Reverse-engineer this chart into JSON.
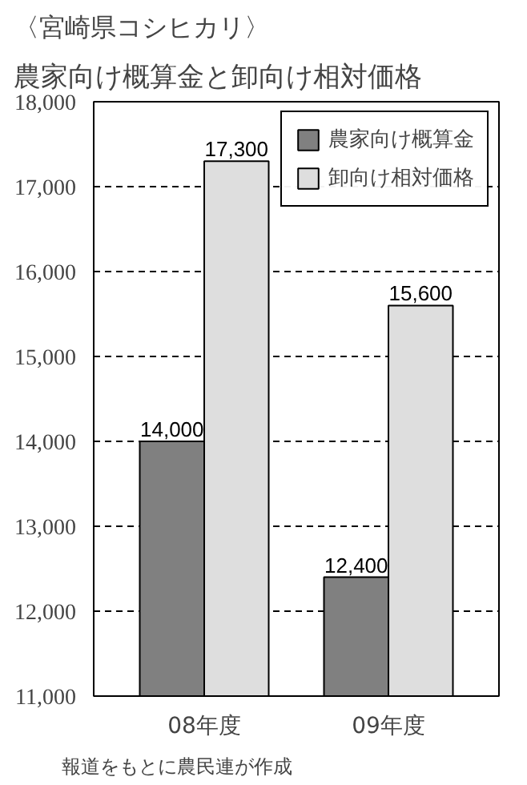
{
  "chart_data": {
    "type": "bar",
    "title": "〈宮崎県コシヒカリ〉",
    "subtitle": "農家向け概算金と卸向け相対価格",
    "categories": [
      "08年度",
      "09年度"
    ],
    "series": [
      {
        "name": "農家向け概算金",
        "color": "#808080",
        "values": [
          14000,
          12400
        ],
        "value_labels": [
          "14,000",
          "12,400"
        ]
      },
      {
        "name": "卸向け相対価格",
        "color": "#dedede",
        "values": [
          17300,
          15600
        ],
        "value_labels": [
          "17,300",
          "15,600"
        ]
      }
    ],
    "ylim": [
      11000,
      18000
    ],
    "yticks": [
      {
        "value": 11000,
        "label": "11,000"
      },
      {
        "value": 12000,
        "label": "12,000"
      },
      {
        "value": 13000,
        "label": "13,000"
      },
      {
        "value": 14000,
        "label": "14,000"
      },
      {
        "value": 15000,
        "label": "15,000"
      },
      {
        "value": 16000,
        "label": "16,000"
      },
      {
        "value": 17000,
        "label": "17,000"
      },
      {
        "value": 18000,
        "label": "18,000"
      }
    ],
    "grid": "y",
    "legend": "top right",
    "annotations": [
      "報道をもとに農民連が作成"
    ]
  }
}
